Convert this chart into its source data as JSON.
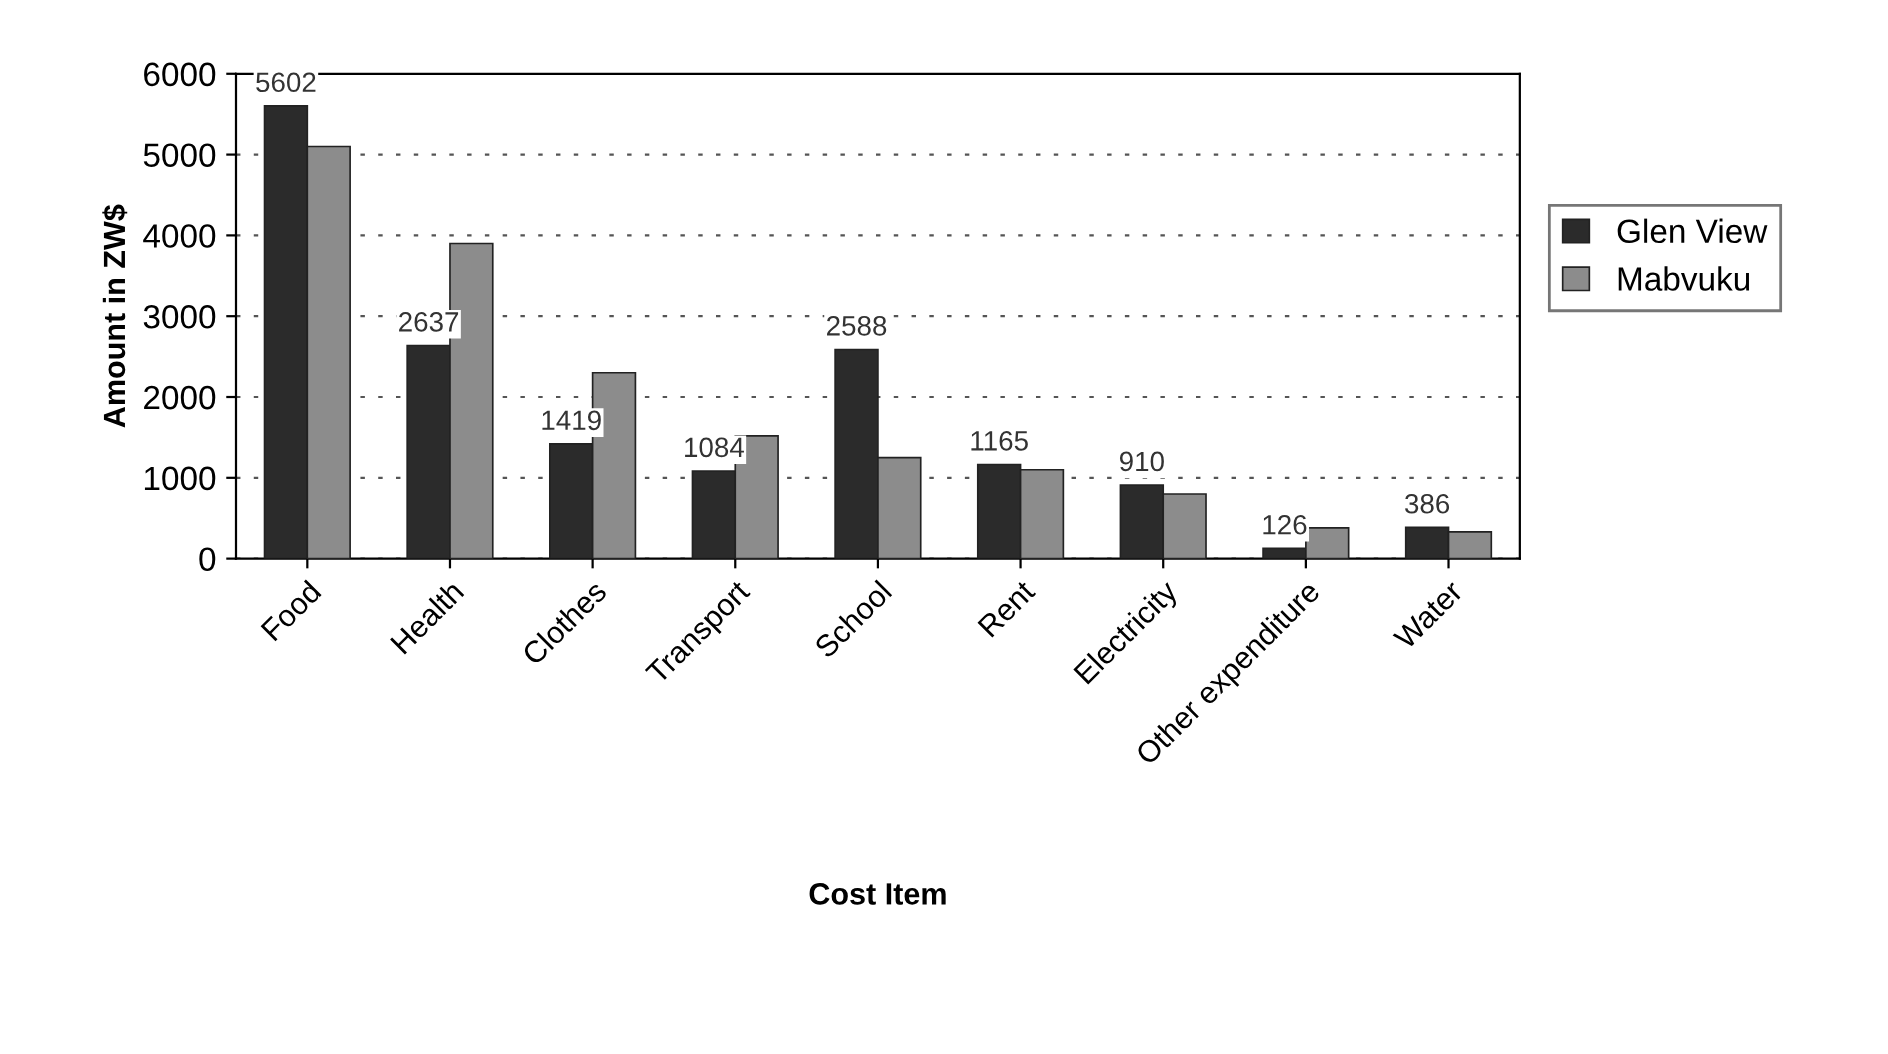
{
  "chart_data": {
    "type": "bar",
    "xlabel": "Cost Item",
    "ylabel": "Amount in ZW$",
    "categories": [
      "Food",
      "Health",
      "Clothes",
      "Transport",
      "School",
      "Rent",
      "Electricity",
      "Other expenditure",
      "Water"
    ],
    "series": [
      {
        "name": "Glen View",
        "color": "#2b2b2b",
        "values": [
          5602,
          2637,
          1419,
          1084,
          2588,
          1165,
          910,
          126,
          386
        ],
        "value_labels": [
          "5602",
          "2637",
          "1419",
          "1084",
          "2588",
          "1165",
          "910",
          "126",
          "386"
        ]
      },
      {
        "name": "Mabvuku",
        "color": "#8c8c8c",
        "values": [
          5100,
          3900,
          2300,
          1520,
          1250,
          1100,
          800,
          380,
          330
        ]
      }
    ],
    "ylim": [
      0,
      6000
    ],
    "yticks": [
      0,
      1000,
      2000,
      3000,
      4000,
      5000,
      6000
    ],
    "grid": "y",
    "legend": "right"
  }
}
